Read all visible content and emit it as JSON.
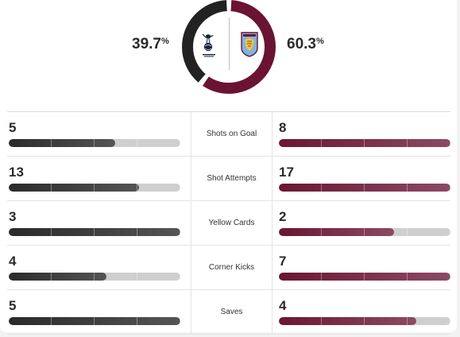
{
  "possession": {
    "home": {
      "value": "39.7",
      "unit": "%",
      "fraction": 0.397,
      "color": "#222222"
    },
    "away": {
      "value": "60.3",
      "unit": "%",
      "fraction": 0.603,
      "color": "#6b1333"
    }
  },
  "teams": {
    "home": {
      "crest": "tottenham-crest-icon"
    },
    "away": {
      "crest": "aston-villa-crest-icon"
    }
  },
  "stats": [
    {
      "label": "Shots on Goal",
      "home": "5",
      "away": "8",
      "home_fill": 0.62,
      "away_fill": 1.0
    },
    {
      "label": "Shot Attempts",
      "home": "13",
      "away": "17",
      "home_fill": 0.76,
      "away_fill": 1.0
    },
    {
      "label": "Yellow Cards",
      "home": "3",
      "away": "2",
      "home_fill": 1.0,
      "away_fill": 0.67
    },
    {
      "label": "Corner Kicks",
      "home": "4",
      "away": "7",
      "home_fill": 0.57,
      "away_fill": 1.0
    },
    {
      "label": "Saves",
      "home": "5",
      "away": "4",
      "home_fill": 1.0,
      "away_fill": 0.8
    }
  ]
}
